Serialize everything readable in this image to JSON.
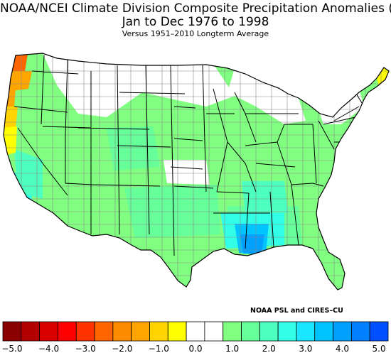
{
  "title": {
    "line1": "NOAA/NCEI Climate Division Composite Precipitation Anomalies (in)",
    "line2": "Jan to Dec 1976 to 1998",
    "line3": "Versus 1951–2010 Longterm Average"
  },
  "credit": "NOAA PSL and CIRES–CU",
  "legend": {
    "colors": [
      "#8b0000",
      "#b30000",
      "#d90000",
      "#ff0000",
      "#ff3300",
      "#ff6600",
      "#ff8c00",
      "#ffa500",
      "#ffd400",
      "#ffff00",
      "#ffffff",
      "#ffffff",
      "#80ff80",
      "#66ff99",
      "#4dffc0",
      "#33ffe6",
      "#1ae6ff",
      "#00c4ff",
      "#00a0ff",
      "#0080ff",
      "#0050ff"
    ],
    "ticks": [
      "−5.0",
      "−4.0",
      "−3.0",
      "−2.0",
      "−1.0",
      "0.0",
      "1.0",
      "2.0",
      "3.0",
      "4.0",
      "5.0"
    ]
  },
  "map_data": {
    "region": "Contiguous United States climate divisions",
    "units": "in",
    "anomaly_regions": [
      {
        "name": "Western Washington coast",
        "category": "-1.5 to -2.0",
        "color": "#ffa500"
      },
      {
        "name": "Northwest Washington coast",
        "category": "-2.5 to -3.0",
        "color": "#ff6600"
      },
      {
        "name": "Oregon coast",
        "category": "-1.0 to -1.5",
        "color": "#ffd400"
      },
      {
        "name": "Northern California coast",
        "category": "-0.5 to -1.0",
        "color": "#ffff00"
      },
      {
        "name": "Northeast Maine",
        "category": "-0.5 to -1.0",
        "color": "#ffff00"
      },
      {
        "name": "Delaware / Maryland",
        "category": "-0.5 to -1.0",
        "color": "#ffff00"
      },
      {
        "name": "Gulf Coast (Louisiana / Mississippi)",
        "category": "+3.0 to +4.5",
        "color": "#00a0ff"
      },
      {
        "name": "Southern California coast",
        "category": "+2.0 to +2.5",
        "color": "#33ffe6"
      },
      {
        "name": "Most of interior and eastern US",
        "category": "+0.5 to +2.0",
        "color": "#80ff80"
      },
      {
        "name": "Northern Plains / Great Lakes / upper West",
        "category": "-0.5 to +0.5",
        "color": "#ffffff"
      }
    ]
  }
}
